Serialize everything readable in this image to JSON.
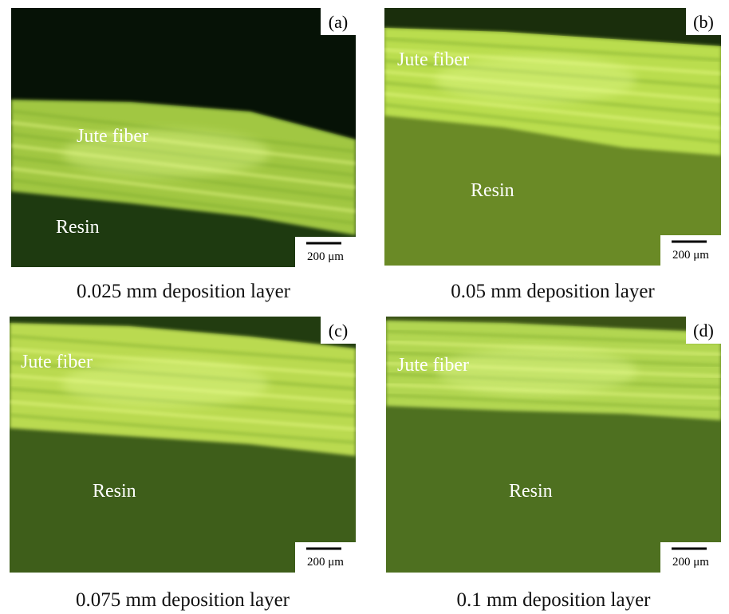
{
  "panels": [
    {
      "label": "(a)",
      "fiber_label": "Jute fiber",
      "resin_label": "Resin",
      "scale_bar": "200 μm",
      "caption": "0.025 mm deposition layer"
    },
    {
      "label": "(b)",
      "fiber_label": "Jute fiber",
      "resin_label": "Resin",
      "scale_bar": "200 μm",
      "caption": "0.05 mm deposition layer"
    },
    {
      "label": "(c)",
      "fiber_label": "Jute fiber",
      "resin_label": "Resin",
      "scale_bar": "200 μm",
      "caption": "0.075 mm deposition layer"
    },
    {
      "label": "(d)",
      "fiber_label": "Jute fiber",
      "resin_label": "Resin",
      "scale_bar": "200 μm",
      "caption": "0.1 mm deposition layer"
    }
  ]
}
